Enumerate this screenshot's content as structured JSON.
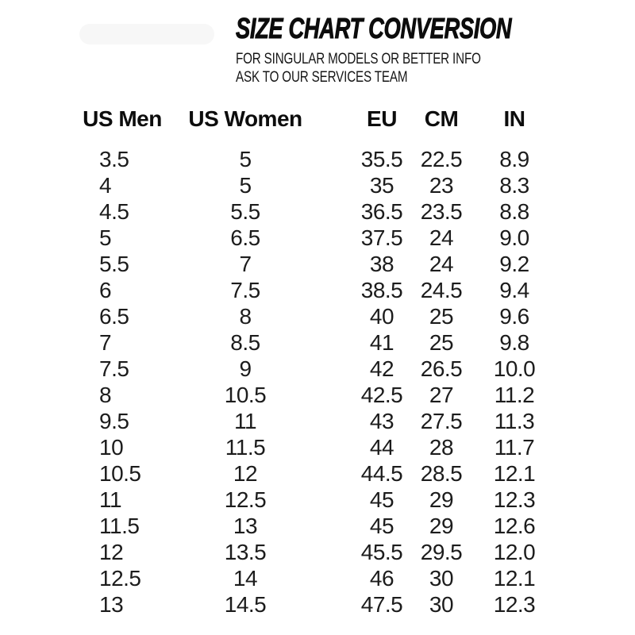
{
  "header": {
    "title": "SIZE CHART CONVERSION",
    "subtitle_line1": "FOR SINGULAR MODELS OR BETTER INFO",
    "subtitle_line2": "ASK TO OUR SERVICES TEAM"
  },
  "chart_data": {
    "type": "table",
    "title": "SIZE CHART CONVERSION",
    "columns": [
      "US Men",
      "US Women",
      "EU",
      "CM",
      "IN"
    ],
    "rows": [
      [
        "3.5",
        "5",
        "35.5",
        "22.5",
        "8.9"
      ],
      [
        "4",
        "5",
        "35",
        "23",
        "8.3"
      ],
      [
        "4.5",
        "5.5",
        "36.5",
        "23.5",
        "8.8"
      ],
      [
        "5",
        "6.5",
        "37.5",
        "24",
        "9.0"
      ],
      [
        "5.5",
        "7",
        "38",
        "24",
        "9.2"
      ],
      [
        "6",
        "7.5",
        "38.5",
        "24.5",
        "9.4"
      ],
      [
        "6.5",
        "8",
        "40",
        "25",
        "9.6"
      ],
      [
        "7",
        "8.5",
        "41",
        "25",
        "9.8"
      ],
      [
        "7.5",
        "9",
        "42",
        "26.5",
        "10.0"
      ],
      [
        "8",
        "10.5",
        "42.5",
        "27",
        "11.2"
      ],
      [
        "9.5",
        "11",
        "43",
        "27.5",
        "11.3"
      ],
      [
        "10",
        "11.5",
        "44",
        "28",
        "11.7"
      ],
      [
        "10.5",
        "12",
        "44.5",
        "28.5",
        "12.1"
      ],
      [
        "11",
        "12.5",
        "45",
        "29",
        "12.3"
      ],
      [
        "11.5",
        "13",
        "45",
        "29",
        "12.6"
      ],
      [
        "12",
        "13.5",
        "45.5",
        "29.5",
        "12.0"
      ],
      [
        "12.5",
        "14",
        "46",
        "30",
        "12.1"
      ],
      [
        "13",
        "14.5",
        "47.5",
        "30",
        "12.3"
      ]
    ]
  },
  "colors": {
    "background": "#ffffff",
    "text": "#141414",
    "title_text": "#0c0c0c"
  }
}
